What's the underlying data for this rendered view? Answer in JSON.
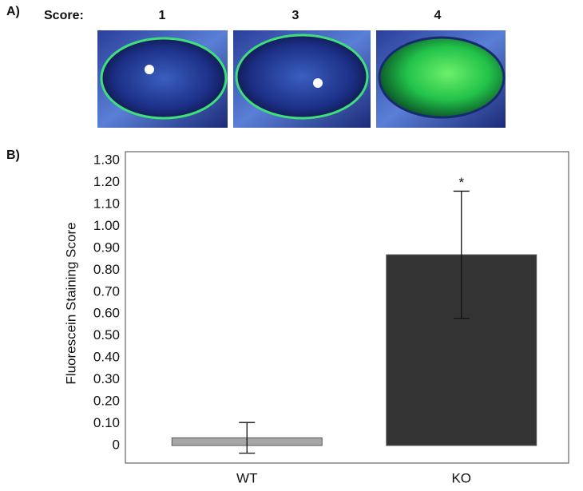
{
  "panel_a": {
    "label": "A)",
    "score_label": "Score:",
    "scores": [
      "1",
      "3",
      "4"
    ]
  },
  "chart_data": {
    "type": "bar",
    "panel_label": "B)",
    "y_label": "Fluorescein Staining Score",
    "categories": [
      "WT",
      "KO"
    ],
    "values": [
      0.035,
      0.87
    ],
    "errors": [
      0.07,
      0.29
    ],
    "colors": [
      "#a6a6a6",
      "#333333"
    ],
    "significance_labels": [
      null,
      "*"
    ],
    "ylim": [
      -0.08,
      1.34
    ],
    "yticks": [
      0,
      {
        "value": 0.1,
        "label": "0.10"
      },
      {
        "value": 0.2,
        "label": "0.20"
      },
      {
        "value": 0.3,
        "label": "0.30"
      },
      {
        "value": 0.4,
        "label": "0.40"
      },
      {
        "value": 0.5,
        "label": "0.50"
      },
      {
        "value": 0.6,
        "label": "0.60"
      },
      {
        "value": 0.7,
        "label": "0.70"
      },
      {
        "value": 0.8,
        "label": "0.80"
      },
      {
        "value": 0.9,
        "label": "0.90"
      },
      {
        "value": 1.0,
        "label": "1.00"
      },
      {
        "value": 1.1,
        "label": "1.10"
      },
      {
        "value": 1.2,
        "label": "1.20"
      },
      {
        "value": 1.3,
        "label": "1.30"
      }
    ],
    "grid": false
  }
}
